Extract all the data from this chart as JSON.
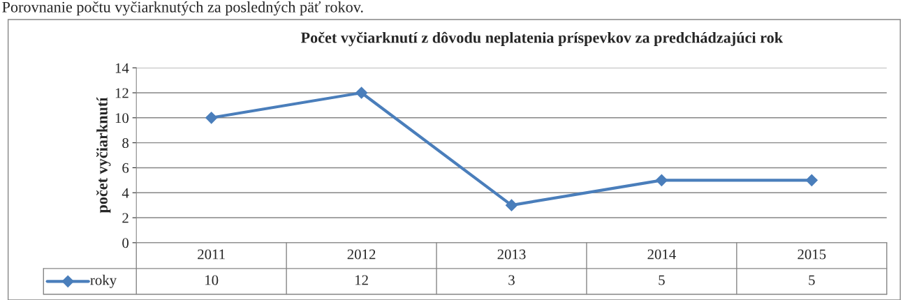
{
  "chart_data": {
    "type": "line",
    "title": "Počet vyčiarknutí z dôvodu neplatenia príspevkov za predchádzajúci rok",
    "ylabel": "počet vyčiarknutí",
    "annotations": [
      "Porovnanie počtu vyčiarknutých za posledných päť rokov."
    ],
    "categories": [
      "2011",
      "2012",
      "2013",
      "2014",
      "2015"
    ],
    "series": [
      {
        "name": "roky",
        "color": "#4a7ebb",
        "values": [
          10,
          12,
          3,
          5,
          5
        ]
      }
    ],
    "ylim": [
      0,
      14
    ],
    "yticks": [
      0,
      2,
      4,
      6,
      8,
      10,
      12,
      14
    ],
    "grid": "y",
    "marker": "diamond",
    "line_style": "solid",
    "legend": "bottom",
    "data_labels": true
  }
}
